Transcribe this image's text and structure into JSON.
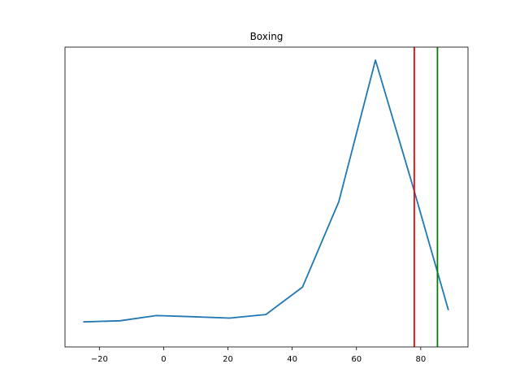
{
  "chart_data": {
    "type": "line",
    "title": "Boxing",
    "xlabel": "",
    "ylabel": "",
    "xlim": [
      -30.7,
      94.7
    ],
    "ylim": [
      0,
      1
    ],
    "grid": false,
    "x_ticks": [
      -20,
      0,
      20,
      40,
      60,
      80
    ],
    "x_tick_labels": [
      "−20",
      "0",
      "20",
      "40",
      "60",
      "80"
    ],
    "y_ticks_visible": false,
    "series": [
      {
        "color": "#1f77b4",
        "x": [
          -25.0,
          -13.6,
          -2.3,
          9.1,
          20.5,
          31.8,
          43.2,
          54.5,
          65.9,
          77.3,
          88.6
        ],
        "y": [
          0.044,
          0.048,
          0.067,
          0.063,
          0.058,
          0.071,
          0.171,
          0.483,
          1.0,
          0.549,
          0.087
        ]
      }
    ],
    "vlines": [
      {
        "x": 78.0,
        "color": "#ff0000"
      },
      {
        "x": 85.2,
        "color": "#008000"
      }
    ]
  }
}
